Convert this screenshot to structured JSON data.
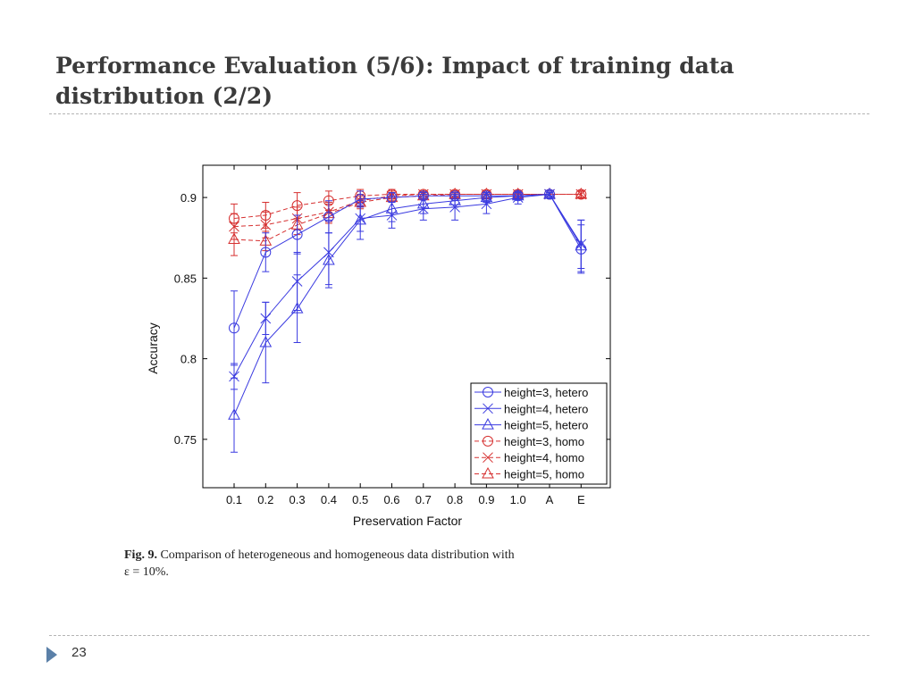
{
  "slide": {
    "title_line1": "Performance Evaluation (5/6): Impact of training data",
    "title_line2": "distribution (2/2)",
    "page_number": "23"
  },
  "caption": {
    "fig_label": "Fig. 9.",
    "line1_text": "Comparison of heterogeneous and homogeneous data distribution with",
    "line2_text": "ε = 10%."
  },
  "colors": {
    "hetero": "#3a3ae0",
    "homo": "#d63030"
  },
  "chart_data": {
    "type": "line",
    "xlabel": "Preservation Factor",
    "ylabel": "Accuracy",
    "categories": [
      "0.1",
      "0.2",
      "0.3",
      "0.4",
      "0.5",
      "0.6",
      "0.7",
      "0.8",
      "0.9",
      "1.0",
      "A",
      "E"
    ],
    "ylim": [
      0.72,
      0.92
    ],
    "yticks": [
      "0.75",
      "0.8",
      "0.85",
      "0.9"
    ],
    "grid": false,
    "legend_position": "bottom-right",
    "series": [
      {
        "name": "height=3, hetero",
        "group": "hetero",
        "marker": "circle",
        "values": [
          0.819,
          0.866,
          0.877,
          0.888,
          0.899,
          0.9,
          0.901,
          0.901,
          0.901,
          0.901,
          0.902,
          0.868
        ],
        "errors": [
          0.023,
          0.012,
          0.012,
          0.01,
          0.005,
          0.003,
          0.002,
          0.002,
          0.002,
          0.002,
          0.001,
          0.015
        ]
      },
      {
        "name": "height=4, hetero",
        "group": "hetero",
        "marker": "x",
        "values": [
          0.789,
          0.825,
          0.848,
          0.866,
          0.887,
          0.889,
          0.893,
          0.894,
          0.896,
          0.9,
          0.902,
          0.871
        ],
        "errors": [
          0.008,
          0.01,
          0.018,
          0.02,
          0.008,
          0.008,
          0.007,
          0.008,
          0.006,
          0.004,
          0.002,
          0.015
        ]
      },
      {
        "name": "height=5, hetero",
        "group": "hetero",
        "marker": "triangle",
        "values": [
          0.765,
          0.81,
          0.831,
          0.861,
          0.886,
          0.893,
          0.896,
          0.898,
          0.9,
          0.901,
          0.902,
          0.87
        ],
        "errors": [
          0.023,
          0.025,
          0.021,
          0.017,
          0.012,
          0.008,
          0.006,
          0.004,
          0.003,
          0.002,
          0.001,
          0.016
        ]
      },
      {
        "name": "height=3, homo",
        "group": "homo",
        "marker": "circle",
        "values": [
          0.887,
          0.889,
          0.895,
          0.898,
          0.901,
          0.902,
          0.902,
          0.902,
          0.902,
          0.902,
          0.902,
          0.902
        ],
        "errors": [
          0.009,
          0.008,
          0.008,
          0.006,
          0.004,
          0.003,
          0.002,
          0.002,
          0.002,
          0.002,
          0.002,
          0.002
        ]
      },
      {
        "name": "height=4, homo",
        "group": "homo",
        "marker": "x",
        "values": [
          0.882,
          0.883,
          0.887,
          0.891,
          0.898,
          0.901,
          0.902,
          0.902,
          0.902,
          0.902,
          0.902,
          0.902
        ],
        "errors": [
          0.008,
          0.008,
          0.007,
          0.006,
          0.004,
          0.003,
          0.002,
          0.002,
          0.002,
          0.002,
          0.002,
          0.002
        ]
      },
      {
        "name": "height=5, homo",
        "group": "homo",
        "marker": "triangle",
        "values": [
          0.874,
          0.873,
          0.883,
          0.89,
          0.897,
          0.9,
          0.901,
          0.902,
          0.902,
          0.902,
          0.902,
          0.902
        ],
        "errors": [
          0.01,
          0.006,
          0.006,
          0.006,
          0.004,
          0.003,
          0.002,
          0.002,
          0.002,
          0.002,
          0.002,
          0.002
        ]
      }
    ]
  }
}
